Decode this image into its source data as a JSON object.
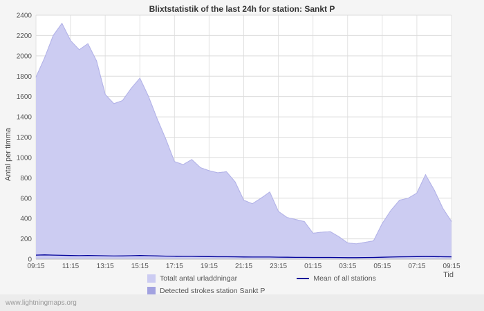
{
  "chart_data": {
    "type": "area",
    "title": "Blixtstatistik of the last 24h for station: Sankt P",
    "xlabel": "Tid",
    "ylabel": "Antal per timma",
    "ylim": [
      0,
      2400
    ],
    "y_ticks": [
      0,
      200,
      400,
      600,
      800,
      1000,
      1200,
      1400,
      1600,
      1800,
      2000,
      2200,
      2400
    ],
    "x_tick_labels": [
      "09:15",
      "11:15",
      "13:15",
      "15:15",
      "17:15",
      "19:15",
      "21:15",
      "23:15",
      "01:15",
      "03:15",
      "05:15",
      "07:15",
      "09:15"
    ],
    "sample_interval_minutes": 30,
    "grid": true,
    "legend_position": "bottom",
    "colors": {
      "plot_background": "#ffffff",
      "grid": "#dcdcdc",
      "tick_text": "#555555"
    },
    "series": [
      {
        "name": "Totalt antal urladdningar",
        "type": "area",
        "color": "#ccccf2",
        "stroke": "#b4b4e8",
        "values": [
          1790,
          1980,
          2200,
          2320,
          2150,
          2060,
          2120,
          1950,
          1620,
          1530,
          1560,
          1680,
          1780,
          1600,
          1380,
          1180,
          960,
          930,
          980,
          900,
          870,
          850,
          860,
          760,
          580,
          545,
          600,
          660,
          470,
          410,
          390,
          370,
          255,
          265,
          270,
          220,
          160,
          150,
          165,
          180,
          350,
          480,
          580,
          600,
          650,
          830,
          680,
          500,
          370
        ]
      },
      {
        "name": "Detected strokes station Sankt P",
        "type": "area",
        "color": "#a2a2e0",
        "stroke": "#9090d6",
        "values": [
          1790,
          1980,
          2200,
          2320,
          2150,
          2060,
          2120,
          1950,
          1620,
          1530,
          1560,
          1680,
          1780,
          1600,
          1380,
          1180,
          960,
          930,
          980,
          900,
          870,
          850,
          860,
          760,
          580,
          545,
          600,
          660,
          470,
          410,
          390,
          370,
          255,
          265,
          270,
          220,
          160,
          150,
          165,
          180,
          350,
          480,
          580,
          600,
          650,
          830,
          680,
          500,
          370
        ]
      },
      {
        "name": "Mean of all stations",
        "type": "line",
        "color": "#000099",
        "values": [
          40,
          42,
          40,
          38,
          36,
          35,
          36,
          35,
          33,
          31,
          32,
          34,
          36,
          34,
          32,
          30,
          28,
          27,
          27,
          26,
          25,
          24,
          24,
          23,
          22,
          21,
          21,
          21,
          20,
          19,
          18,
          18,
          17,
          17,
          17,
          16,
          15,
          15,
          16,
          17,
          19,
          21,
          23,
          24,
          25,
          26,
          25,
          24,
          23
        ]
      }
    ]
  },
  "footer": {
    "watermark": "www.lightningmaps.org"
  }
}
